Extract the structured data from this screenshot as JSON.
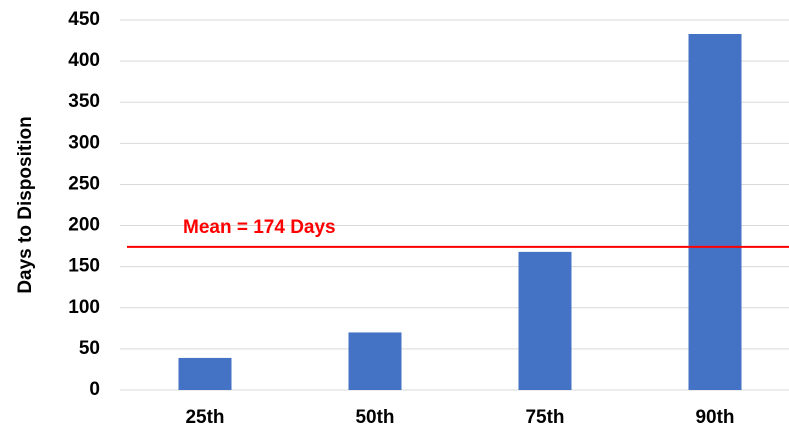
{
  "chart_data": {
    "type": "bar",
    "y_label": "Days to Disposition",
    "categories": [
      "25th",
      "50th",
      "75th",
      "90th"
    ],
    "values": [
      39,
      70,
      168,
      433
    ],
    "color": "#4472c4",
    "ylim": [
      0,
      450
    ],
    "yticks": [
      0,
      50,
      100,
      150,
      200,
      250,
      300,
      350,
      400,
      450
    ],
    "grid": true,
    "mean_line": {
      "value": 174,
      "label": "Mean = 174 Days",
      "color": "#ff0000"
    }
  }
}
